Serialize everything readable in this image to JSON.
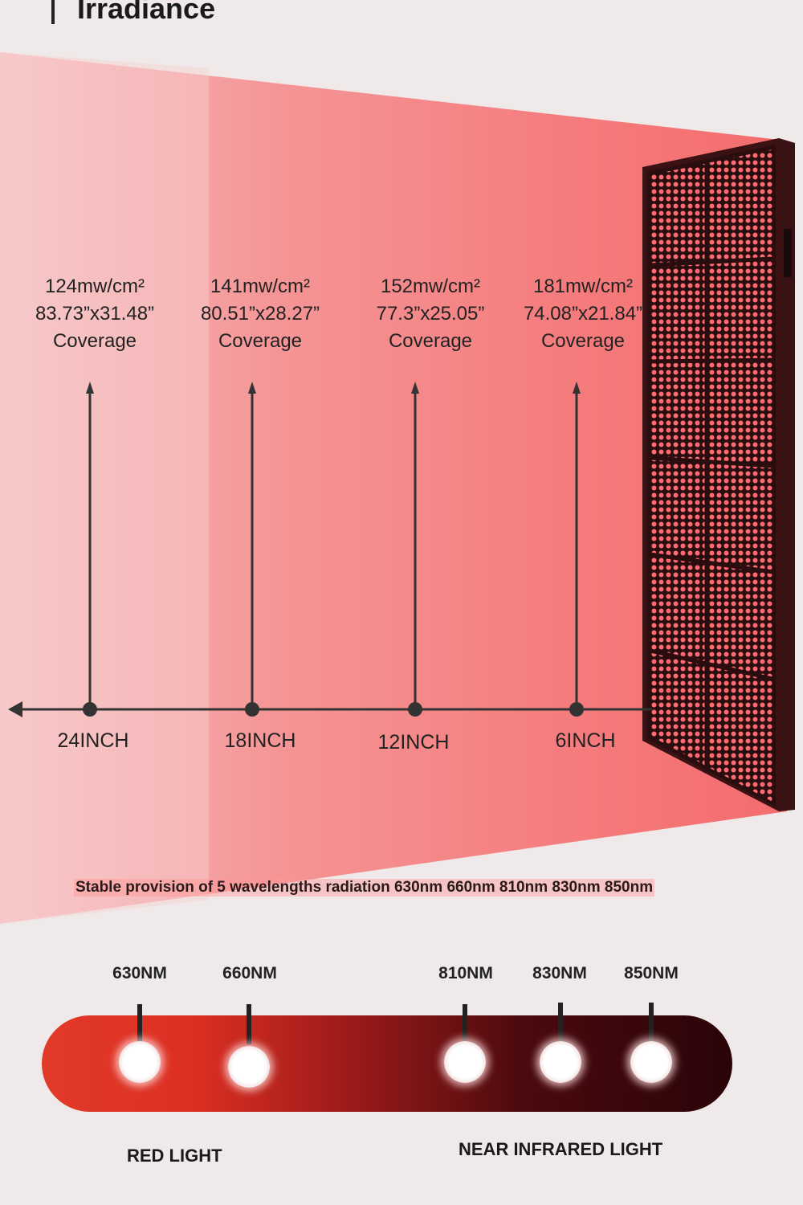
{
  "title": "Irradiance",
  "coverage_points": [
    {
      "irradiance": "124mw/cm²",
      "size": "83.73”x31.48”",
      "caption": "Coverage",
      "distance": "24INCH"
    },
    {
      "irradiance": "141mw/cm²",
      "size": "80.51”x28.27”",
      "caption": "Coverage",
      "distance": "18INCH"
    },
    {
      "irradiance": "152mw/cm²",
      "size": "77.3”x25.05”",
      "caption": "Coverage",
      "distance": "12INCH"
    },
    {
      "irradiance": "181mw/cm²",
      "size": "74.08”x21.84”",
      "caption": "Coverage",
      "distance": "6INCH"
    }
  ],
  "wavelength_note": "Stable provision of 5 wavelengths radiation 630nm 660nm 810nm 830nm 850nm",
  "wavelengths": [
    "630NM",
    "660NM",
    "810NM",
    "830NM",
    "850NM"
  ],
  "categories": {
    "red": "RED LIGHT",
    "nir": "NEAR INFRARED LIGHT"
  },
  "colors": {
    "beam": "#f47a78",
    "panel": "#2a0d0f",
    "led": "#ff6b70",
    "spectrum_start": "#e23a2a",
    "spectrum_end": "#2a0408"
  }
}
